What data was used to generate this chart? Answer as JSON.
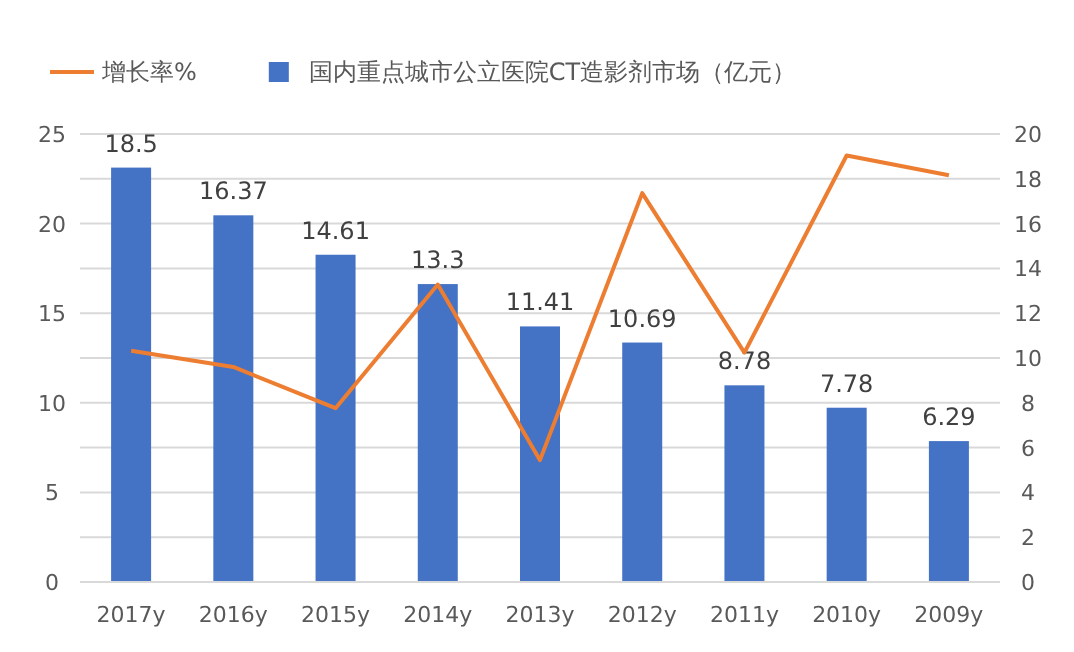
{
  "chart_data": {
    "type": "bar",
    "categories": [
      "2017y",
      "2016y",
      "2015y",
      "2014y",
      "2013y",
      "2012y",
      "2011y",
      "2010y",
      "2009y"
    ],
    "series": [
      {
        "name": "国内重点城市公立医院CT造影剂市场（亿元）",
        "axis": "y2",
        "color": "#4472c4",
        "values": [
          18.5,
          16.37,
          14.61,
          13.3,
          11.41,
          10.69,
          8.78,
          7.78,
          6.29
        ],
        "value_labels": [
          "18.5",
          "16.37",
          "14.61",
          "13.3",
          "11.41",
          "10.69",
          "8.78",
          "7.78",
          "6.29"
        ]
      },
      {
        "name": "增长率%",
        "type": "line",
        "axis": "y",
        "color": "#ed7d31",
        "values": [
          12.9,
          12.0,
          9.7,
          16.6,
          6.8,
          21.7,
          12.8,
          23.8,
          22.7
        ]
      }
    ],
    "ylim": [
      0,
      25
    ],
    "yticks": [
      0,
      5,
      10,
      15,
      20,
      25
    ],
    "y2lim": [
      0,
      20
    ],
    "y2ticks": [
      0,
      2,
      4,
      6,
      8,
      10,
      12,
      14,
      16,
      18,
      20
    ],
    "grid": "y2",
    "legend": "top",
    "marker": "none",
    "line_style": "solid"
  }
}
